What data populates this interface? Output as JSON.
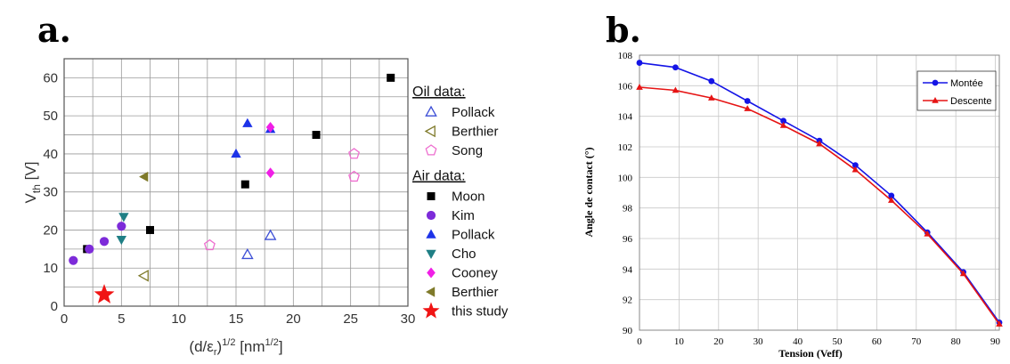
{
  "panels": {
    "a": "a.",
    "b": "b."
  },
  "chart_data": [
    {
      "type": "scatter",
      "title": "",
      "xlabel": "(d/εr)^1/2 [nm^1/2]",
      "xlabel_parts": {
        "base": "(d/ε",
        "sub1": "r",
        "mid": ")",
        "sup1": "1/2",
        "unit": " [nm",
        "sup2": "1/2",
        "end": "]"
      },
      "ylabel": "Vth [V]",
      "ylabel_parts": {
        "base": "V",
        "sub": "th",
        "unit": " [V]"
      },
      "xlim": [
        0,
        30
      ],
      "ylim": [
        0,
        65
      ],
      "xticks": [
        0,
        5,
        10,
        15,
        20,
        25,
        30
      ],
      "yticks": [
        0,
        10,
        20,
        30,
        40,
        50,
        60
      ],
      "grid": true,
      "legend_position": "right",
      "legend_groups": [
        {
          "heading": "Oil data:",
          "items": [
            "Pollack",
            "Berthier",
            "Song"
          ]
        },
        {
          "heading": "Air data:",
          "items": [
            "Moon",
            "Kim",
            "Pollack",
            "Cho",
            "Cooney",
            "Berthier",
            "this study"
          ]
        }
      ],
      "series": [
        {
          "name": "Pollack",
          "group": "Oil data",
          "marker": "triangle-up-open",
          "color": "#3d4fd6",
          "x": [
            16,
            18
          ],
          "y": [
            13.5,
            18.5
          ]
        },
        {
          "name": "Berthier",
          "group": "Oil data",
          "marker": "triangle-left-open",
          "color": "#7f7a2a",
          "x": [
            7
          ],
          "y": [
            8
          ]
        },
        {
          "name": "Song",
          "group": "Oil data",
          "marker": "pentagon-open",
          "color": "#ee6fcf",
          "x": [
            12.7,
            25.3,
            25.3
          ],
          "y": [
            16,
            34,
            40
          ]
        },
        {
          "name": "Moon",
          "group": "Air data",
          "marker": "square",
          "color": "#000000",
          "x": [
            2,
            7.5,
            15.8,
            22,
            28.5
          ],
          "y": [
            15,
            20,
            32,
            45,
            60
          ]
        },
        {
          "name": "Kim",
          "group": "Air data",
          "marker": "circle",
          "color": "#7d2bd9",
          "x": [
            0.8,
            2.2,
            3.5,
            5
          ],
          "y": [
            12,
            15,
            17,
            21
          ]
        },
        {
          "name": "Pollack",
          "group": "Air data",
          "marker": "triangle-up",
          "color": "#1d33e8",
          "x": [
            15,
            16,
            18
          ],
          "y": [
            40,
            48,
            46.5
          ]
        },
        {
          "name": "Cho",
          "group": "Air data",
          "marker": "triangle-down",
          "color": "#1f7f85",
          "x": [
            5,
            5.2
          ],
          "y": [
            17.5,
            23.5
          ]
        },
        {
          "name": "Cooney",
          "group": "Air data",
          "marker": "diamond",
          "color": "#f01fe6",
          "x": [
            18,
            18
          ],
          "y": [
            35,
            47
          ]
        },
        {
          "name": "Berthier",
          "group": "Air data",
          "marker": "triangle-left",
          "color": "#7f7a2a",
          "x": [
            7
          ],
          "y": [
            34
          ]
        },
        {
          "name": "this study",
          "group": "Air data",
          "marker": "star",
          "color": "#f01414",
          "x": [
            3.5
          ],
          "y": [
            3
          ]
        }
      ]
    },
    {
      "type": "line",
      "title": "",
      "xlabel": "Tension (Veff)",
      "ylabel": "Angle de contact (°)",
      "xlim": [
        0,
        91
      ],
      "ylim": [
        90,
        108
      ],
      "xticks": [
        0,
        10,
        20,
        30,
        40,
        50,
        60,
        70,
        80,
        90
      ],
      "yticks": [
        90,
        92,
        94,
        96,
        98,
        100,
        102,
        104,
        106,
        108
      ],
      "grid": true,
      "legend_position": "top-right",
      "series": [
        {
          "name": "Montée",
          "color": "#1414e6",
          "marker": "circle",
          "x": [
            0,
            9.1,
            18.2,
            27.3,
            36.4,
            45.5,
            54.6,
            63.7,
            72.8,
            81.9,
            91
          ],
          "y": [
            107.5,
            107.2,
            106.3,
            105,
            103.7,
            102.4,
            100.8,
            98.8,
            96.4,
            93.8,
            90.5
          ]
        },
        {
          "name": "Descente",
          "color": "#e61414",
          "marker": "triangle",
          "x": [
            0,
            9.1,
            18.2,
            27.3,
            36.4,
            45.5,
            54.6,
            63.7,
            72.8,
            81.9,
            91
          ],
          "y": [
            105.9,
            105.7,
            105.2,
            104.5,
            103.4,
            102.2,
            100.5,
            98.5,
            96.3,
            93.7,
            90.4
          ]
        }
      ]
    }
  ]
}
